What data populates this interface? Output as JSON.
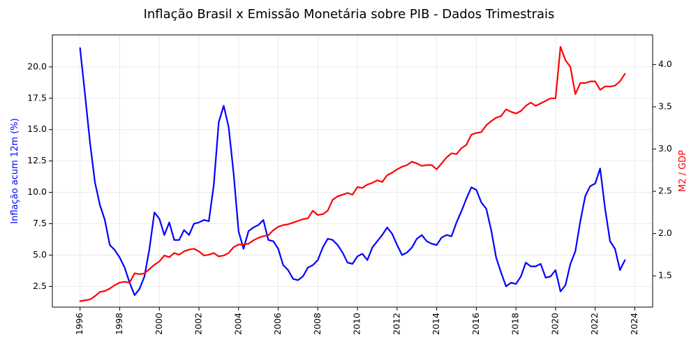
{
  "chart_data": {
    "type": "line",
    "title": "Inflação Brasil x Emissão Monetária sobre PIB - Dados Trimestrais",
    "xlabel": "",
    "x_ticks": [
      "1996",
      "1998",
      "2000",
      "2002",
      "2004",
      "2006",
      "2008",
      "2010",
      "2012",
      "2014",
      "2016",
      "2018",
      "2020",
      "2022",
      "2024"
    ],
    "xlim": [
      1994.6,
      2024.9
    ],
    "grid": true,
    "left_axis": {
      "label": "Inflação acum 12m (%)",
      "color": "#0000ff",
      "ylim": [
        0.85,
        22.55
      ],
      "ticks": [
        "2.5",
        "5.0",
        "7.5",
        "10.0",
        "12.5",
        "15.0",
        "17.5",
        "20.0"
      ]
    },
    "right_axis": {
      "label": "M2 / GDP",
      "color": "#ff0000",
      "ylim": [
        1.13,
        4.35
      ],
      "ticks": [
        "1.5",
        "2.0",
        "2.5",
        "3.0",
        "3.5",
        "4.0"
      ]
    },
    "series": [
      {
        "axis": "left",
        "color": "#0000ff",
        "points": [
          [
            1996.0,
            21.5
          ],
          [
            1996.25,
            17.8
          ],
          [
            1996.5,
            14.0
          ],
          [
            1996.75,
            10.8
          ],
          [
            1997.0,
            9.0
          ],
          [
            1997.25,
            7.8
          ],
          [
            1997.5,
            5.8
          ],
          [
            1997.75,
            5.4
          ],
          [
            1998.0,
            4.8
          ],
          [
            1998.25,
            4.0
          ],
          [
            1998.5,
            2.8
          ],
          [
            1998.75,
            1.8
          ],
          [
            1999.0,
            2.3
          ],
          [
            1999.25,
            3.3
          ],
          [
            1999.5,
            5.5
          ],
          [
            1999.75,
            8.4
          ],
          [
            2000.0,
            7.9
          ],
          [
            2000.25,
            6.6
          ],
          [
            2000.5,
            7.6
          ],
          [
            2000.75,
            6.2
          ],
          [
            2001.0,
            6.2
          ],
          [
            2001.25,
            7.0
          ],
          [
            2001.5,
            6.6
          ],
          [
            2001.75,
            7.5
          ],
          [
            2002.0,
            7.6
          ],
          [
            2002.25,
            7.8
          ],
          [
            2002.5,
            7.7
          ],
          [
            2002.75,
            10.6
          ],
          [
            2003.0,
            15.6
          ],
          [
            2003.25,
            16.9
          ],
          [
            2003.5,
            15.2
          ],
          [
            2003.75,
            11.5
          ],
          [
            2004.0,
            6.9
          ],
          [
            2004.25,
            5.5
          ],
          [
            2004.5,
            6.9
          ],
          [
            2004.75,
            7.2
          ],
          [
            2005.0,
            7.4
          ],
          [
            2005.25,
            7.8
          ],
          [
            2005.5,
            6.2
          ],
          [
            2005.75,
            6.1
          ],
          [
            2006.0,
            5.5
          ],
          [
            2006.25,
            4.2
          ],
          [
            2006.5,
            3.8
          ],
          [
            2006.75,
            3.1
          ],
          [
            2007.0,
            3.0
          ],
          [
            2007.25,
            3.3
          ],
          [
            2007.5,
            4.0
          ],
          [
            2007.75,
            4.2
          ],
          [
            2008.0,
            4.6
          ],
          [
            2008.25,
            5.6
          ],
          [
            2008.5,
            6.3
          ],
          [
            2008.75,
            6.2
          ],
          [
            2009.0,
            5.8
          ],
          [
            2009.25,
            5.2
          ],
          [
            2009.5,
            4.4
          ],
          [
            2009.75,
            4.3
          ],
          [
            2010.0,
            4.9
          ],
          [
            2010.25,
            5.1
          ],
          [
            2010.5,
            4.6
          ],
          [
            2010.75,
            5.6
          ],
          [
            2011.0,
            6.1
          ],
          [
            2011.25,
            6.6
          ],
          [
            2011.5,
            7.2
          ],
          [
            2011.75,
            6.7
          ],
          [
            2012.0,
            5.8
          ],
          [
            2012.25,
            5.0
          ],
          [
            2012.5,
            5.2
          ],
          [
            2012.75,
            5.6
          ],
          [
            2013.0,
            6.3
          ],
          [
            2013.25,
            6.6
          ],
          [
            2013.5,
            6.1
          ],
          [
            2013.75,
            5.9
          ],
          [
            2014.0,
            5.8
          ],
          [
            2014.25,
            6.4
          ],
          [
            2014.5,
            6.6
          ],
          [
            2014.75,
            6.5
          ],
          [
            2015.0,
            7.6
          ],
          [
            2015.25,
            8.5
          ],
          [
            2015.5,
            9.5
          ],
          [
            2015.75,
            10.4
          ],
          [
            2016.0,
            10.2
          ],
          [
            2016.25,
            9.2
          ],
          [
            2016.5,
            8.7
          ],
          [
            2016.75,
            7.0
          ],
          [
            2017.0,
            4.8
          ],
          [
            2017.25,
            3.6
          ],
          [
            2017.5,
            2.5
          ],
          [
            2017.75,
            2.8
          ],
          [
            2018.0,
            2.7
          ],
          [
            2018.25,
            3.3
          ],
          [
            2018.5,
            4.4
          ],
          [
            2018.75,
            4.1
          ],
          [
            2019.0,
            4.1
          ],
          [
            2019.25,
            4.3
          ],
          [
            2019.5,
            3.2
          ],
          [
            2019.75,
            3.3
          ],
          [
            2020.0,
            3.8
          ],
          [
            2020.25,
            2.1
          ],
          [
            2020.5,
            2.6
          ],
          [
            2020.75,
            4.3
          ],
          [
            2021.0,
            5.3
          ],
          [
            2021.25,
            7.7
          ],
          [
            2021.5,
            9.7
          ],
          [
            2021.75,
            10.5
          ],
          [
            2022.0,
            10.7
          ],
          [
            2022.25,
            11.9
          ],
          [
            2022.5,
            8.7
          ],
          [
            2022.75,
            6.1
          ],
          [
            2023.0,
            5.5
          ],
          [
            2023.25,
            3.8
          ],
          [
            2023.5,
            4.6
          ]
        ]
      },
      {
        "axis": "right",
        "color": "#ff0000",
        "points": [
          [
            1996.0,
            1.2
          ],
          [
            1996.25,
            1.21
          ],
          [
            1996.5,
            1.22
          ],
          [
            1996.75,
            1.26
          ],
          [
            1997.0,
            1.31
          ],
          [
            1997.25,
            1.32
          ],
          [
            1997.5,
            1.35
          ],
          [
            1997.75,
            1.39
          ],
          [
            1998.0,
            1.42
          ],
          [
            1998.25,
            1.43
          ],
          [
            1998.5,
            1.42
          ],
          [
            1998.75,
            1.53
          ],
          [
            1999.0,
            1.52
          ],
          [
            1999.25,
            1.53
          ],
          [
            1999.5,
            1.58
          ],
          [
            1999.75,
            1.63
          ],
          [
            2000.0,
            1.67
          ],
          [
            2000.25,
            1.74
          ],
          [
            2000.5,
            1.72
          ],
          [
            2000.75,
            1.77
          ],
          [
            2001.0,
            1.75
          ],
          [
            2001.25,
            1.79
          ],
          [
            2001.5,
            1.81
          ],
          [
            2001.75,
            1.82
          ],
          [
            2002.0,
            1.79
          ],
          [
            2002.25,
            1.74
          ],
          [
            2002.5,
            1.75
          ],
          [
            2002.75,
            1.77
          ],
          [
            2003.0,
            1.73
          ],
          [
            2003.25,
            1.74
          ],
          [
            2003.5,
            1.77
          ],
          [
            2003.75,
            1.84
          ],
          [
            2004.0,
            1.87
          ],
          [
            2004.25,
            1.87
          ],
          [
            2004.5,
            1.88
          ],
          [
            2004.75,
            1.92
          ],
          [
            2005.0,
            1.95
          ],
          [
            2005.25,
            1.97
          ],
          [
            2005.5,
            1.98
          ],
          [
            2005.75,
            2.04
          ],
          [
            2006.0,
            2.08
          ],
          [
            2006.25,
            2.1
          ],
          [
            2006.5,
            2.11
          ],
          [
            2006.75,
            2.13
          ],
          [
            2007.0,
            2.15
          ],
          [
            2007.25,
            2.17
          ],
          [
            2007.5,
            2.18
          ],
          [
            2007.75,
            2.27
          ],
          [
            2008.0,
            2.22
          ],
          [
            2008.25,
            2.23
          ],
          [
            2008.5,
            2.27
          ],
          [
            2008.75,
            2.4
          ],
          [
            2009.0,
            2.44
          ],
          [
            2009.25,
            2.46
          ],
          [
            2009.5,
            2.48
          ],
          [
            2009.75,
            2.46
          ],
          [
            2010.0,
            2.55
          ],
          [
            2010.25,
            2.54
          ],
          [
            2010.5,
            2.58
          ],
          [
            2010.75,
            2.6
          ],
          [
            2011.0,
            2.63
          ],
          [
            2011.25,
            2.61
          ],
          [
            2011.5,
            2.69
          ],
          [
            2011.75,
            2.72
          ],
          [
            2012.0,
            2.76
          ],
          [
            2012.25,
            2.79
          ],
          [
            2012.5,
            2.81
          ],
          [
            2012.75,
            2.85
          ],
          [
            2013.0,
            2.83
          ],
          [
            2013.25,
            2.8
          ],
          [
            2013.5,
            2.81
          ],
          [
            2013.75,
            2.81
          ],
          [
            2014.0,
            2.76
          ],
          [
            2014.25,
            2.83
          ],
          [
            2014.5,
            2.9
          ],
          [
            2014.75,
            2.95
          ],
          [
            2015.0,
            2.94
          ],
          [
            2015.25,
            3.01
          ],
          [
            2015.5,
            3.05
          ],
          [
            2015.75,
            3.17
          ],
          [
            2016.0,
            3.19
          ],
          [
            2016.25,
            3.2
          ],
          [
            2016.5,
            3.28
          ],
          [
            2016.75,
            3.33
          ],
          [
            2017.0,
            3.37
          ],
          [
            2017.25,
            3.39
          ],
          [
            2017.5,
            3.47
          ],
          [
            2017.75,
            3.44
          ],
          [
            2018.0,
            3.42
          ],
          [
            2018.25,
            3.45
          ],
          [
            2018.5,
            3.51
          ],
          [
            2018.75,
            3.55
          ],
          [
            2019.0,
            3.51
          ],
          [
            2019.25,
            3.54
          ],
          [
            2019.5,
            3.57
          ],
          [
            2019.75,
            3.6
          ],
          [
            2020.0,
            3.6
          ],
          [
            2020.25,
            4.21
          ],
          [
            2020.5,
            4.05
          ],
          [
            2020.75,
            3.97
          ],
          [
            2021.0,
            3.65
          ],
          [
            2021.25,
            3.78
          ],
          [
            2021.5,
            3.78
          ],
          [
            2021.75,
            3.8
          ],
          [
            2022.0,
            3.8
          ],
          [
            2022.25,
            3.7
          ],
          [
            2022.5,
            3.74
          ],
          [
            2022.75,
            3.74
          ],
          [
            2023.0,
            3.75
          ],
          [
            2023.25,
            3.8
          ],
          [
            2023.5,
            3.89
          ]
        ]
      }
    ]
  }
}
